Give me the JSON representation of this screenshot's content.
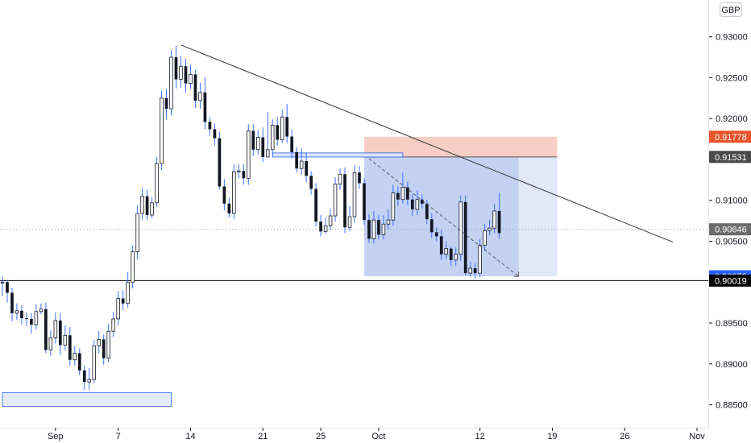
{
  "currency_label": "GBP",
  "chart_data": {
    "type": "candlestick",
    "instrument_currency": "GBP",
    "x_ticks": [
      {
        "label": "Sep",
        "bar": 11
      },
      {
        "label": "7",
        "bar": 24
      },
      {
        "label": "14",
        "bar": 39
      },
      {
        "label": "21",
        "bar": 54
      },
      {
        "label": "25",
        "bar": 66
      },
      {
        "label": "Oct",
        "bar": 78
      },
      {
        "label": "12",
        "bar": 99
      },
      {
        "label": "19",
        "bar": 114
      },
      {
        "label": "26",
        "bar": 129
      },
      {
        "label": "Nov",
        "bar": 144
      }
    ],
    "y_ticks": [
      "0.93000",
      "0.92500",
      "0.92000",
      "0.91500",
      "0.91000",
      "0.90500",
      "0.90000",
      "0.89500",
      "0.89000",
      "0.88500"
    ],
    "ylim": [
      0.8822,
      0.9345
    ],
    "xlim_bars": [
      -0.5,
      146.5
    ],
    "price_tags": [
      {
        "value": "0.91778",
        "color": "#e8542c"
      },
      {
        "value": "0.91531",
        "color": "#4a4a4a"
      },
      {
        "value": "0.90646",
        "color": "#6b6b6b"
      },
      {
        "value": "0.90072",
        "color": "#2962ff"
      },
      {
        "value": "0.90019",
        "color": "#000000"
      }
    ],
    "colors": {
      "up_wick": "#2962ff",
      "down_body": "#131722",
      "trendline": "#333333",
      "target_zone": "#f4c6b8",
      "position_zone": "#c8d6f5",
      "support_zone": "#e3ecfb"
    },
    "horizontal_line": 0.90019,
    "current_price_line": 0.90646,
    "trendline": {
      "from": {
        "bar": 37,
        "price": 0.929
      },
      "to": {
        "bar": 139,
        "price": 0.9049
      }
    },
    "support_zone": {
      "from_bar": 0,
      "to_bar": 35,
      "top": 0.8865,
      "bottom": 0.8848
    },
    "target_zone": {
      "from_bar": 75,
      "to_bar": 115,
      "top": 0.91778,
      "bottom": 0.91531
    },
    "position_zone": {
      "from_bar": 75,
      "to_bar": 115,
      "top": 0.91531,
      "bottom": 0.90072
    },
    "position_zone_dark_until_bar": 107,
    "projection_arrow": {
      "from": {
        "bar": 76,
        "price": 0.9151
      },
      "to": {
        "bar": 107,
        "price": 0.9007
      }
    },
    "small_box": {
      "from_bar": 56,
      "to_bar": 83,
      "top": 0.9158,
      "bottom": 0.9153
    },
    "ohlc": [
      [
        0.9,
        0.9,
        0.9007,
        0.8983
      ],
      [
        0.9,
        0.8987,
        0.9003,
        0.8975
      ],
      [
        0.8987,
        0.8962,
        0.8993,
        0.8952
      ],
      [
        0.8962,
        0.8965,
        0.8974,
        0.8954
      ],
      [
        0.8965,
        0.8956,
        0.8972,
        0.8948
      ],
      [
        0.8956,
        0.8955,
        0.8963,
        0.8946
      ],
      [
        0.8955,
        0.8948,
        0.8962,
        0.8937
      ],
      [
        0.8948,
        0.8964,
        0.8973,
        0.8942
      ],
      [
        0.8964,
        0.8967,
        0.8974,
        0.8961
      ],
      [
        0.8967,
        0.8917,
        0.8975,
        0.8913
      ],
      [
        0.8917,
        0.8932,
        0.8941,
        0.891
      ],
      [
        0.8932,
        0.8953,
        0.8963,
        0.8925
      ],
      [
        0.8953,
        0.8923,
        0.8962,
        0.8911
      ],
      [
        0.8923,
        0.8935,
        0.8947,
        0.8917
      ],
      [
        0.8935,
        0.8905,
        0.8945,
        0.8898
      ],
      [
        0.8905,
        0.8913,
        0.8922,
        0.8898
      ],
      [
        0.8913,
        0.8892,
        0.8919,
        0.8886
      ],
      [
        0.8892,
        0.8878,
        0.8898,
        0.8868
      ],
      [
        0.8878,
        0.8881,
        0.8895,
        0.8868
      ],
      [
        0.8881,
        0.8922,
        0.8929,
        0.8876
      ],
      [
        0.8922,
        0.893,
        0.894,
        0.8913
      ],
      [
        0.893,
        0.8907,
        0.8936,
        0.8899
      ],
      [
        0.8907,
        0.894,
        0.8949,
        0.8902
      ],
      [
        0.894,
        0.8955,
        0.8964,
        0.8933
      ],
      [
        0.8955,
        0.898,
        0.8989,
        0.8947
      ],
      [
        0.898,
        0.8974,
        0.899,
        0.8965
      ],
      [
        0.8974,
        0.9,
        0.9012,
        0.8969
      ],
      [
        0.9,
        0.9037,
        0.9045,
        0.8992
      ],
      [
        0.9037,
        0.9084,
        0.9094,
        0.9028
      ],
      [
        0.9084,
        0.9105,
        0.9116,
        0.9076
      ],
      [
        0.9105,
        0.9082,
        0.9113,
        0.9076
      ],
      [
        0.9082,
        0.9097,
        0.9104,
        0.9078
      ],
      [
        0.9097,
        0.9145,
        0.9153,
        0.9092
      ],
      [
        0.9145,
        0.9225,
        0.9234,
        0.9137
      ],
      [
        0.9225,
        0.9212,
        0.9236,
        0.9199
      ],
      [
        0.9212,
        0.9275,
        0.9284,
        0.9204
      ],
      [
        0.9275,
        0.9248,
        0.9289,
        0.9237
      ],
      [
        0.9248,
        0.9264,
        0.9277,
        0.9238
      ],
      [
        0.9264,
        0.9243,
        0.9273,
        0.9232
      ],
      [
        0.9243,
        0.9254,
        0.9266,
        0.9236
      ],
      [
        0.9254,
        0.9222,
        0.926,
        0.9213
      ],
      [
        0.9222,
        0.9232,
        0.9244,
        0.9212
      ],
      [
        0.9232,
        0.9196,
        0.9251,
        0.9187
      ],
      [
        0.9196,
        0.9187,
        0.9202,
        0.9179
      ],
      [
        0.9187,
        0.9176,
        0.9194,
        0.9167
      ],
      [
        0.9176,
        0.9117,
        0.9184,
        0.9113
      ],
      [
        0.9117,
        0.9096,
        0.9126,
        0.9088
      ],
      [
        0.9096,
        0.9084,
        0.9103,
        0.9079
      ],
      [
        0.9084,
        0.9135,
        0.9144,
        0.9077
      ],
      [
        0.9135,
        0.9136,
        0.9144,
        0.9127
      ],
      [
        0.9136,
        0.9127,
        0.9144,
        0.9119
      ],
      [
        0.9127,
        0.9185,
        0.9193,
        0.9119
      ],
      [
        0.9185,
        0.9162,
        0.9193,
        0.9154
      ],
      [
        0.9162,
        0.9177,
        0.9186,
        0.9156
      ],
      [
        0.9177,
        0.9153,
        0.9189,
        0.9147
      ],
      [
        0.9153,
        0.9162,
        0.9208,
        0.9155
      ],
      [
        0.9162,
        0.9192,
        0.9199,
        0.9154
      ],
      [
        0.9192,
        0.9174,
        0.9202,
        0.9167
      ],
      [
        0.9174,
        0.9202,
        0.9211,
        0.917
      ],
      [
        0.9202,
        0.9178,
        0.9218,
        0.917
      ],
      [
        0.9178,
        0.9159,
        0.9187,
        0.9151
      ],
      [
        0.9159,
        0.9139,
        0.9165,
        0.9134
      ],
      [
        0.9139,
        0.9148,
        0.9164,
        0.9131
      ],
      [
        0.9148,
        0.913,
        0.9158,
        0.9122
      ],
      [
        0.913,
        0.9114,
        0.9136,
        0.9107
      ],
      [
        0.9114,
        0.9074,
        0.9121,
        0.9068
      ],
      [
        0.9074,
        0.9062,
        0.9082,
        0.9056
      ],
      [
        0.9062,
        0.9069,
        0.9079,
        0.9059
      ],
      [
        0.9069,
        0.9081,
        0.909,
        0.9064
      ],
      [
        0.9081,
        0.912,
        0.9128,
        0.9074
      ],
      [
        0.912,
        0.9132,
        0.9139,
        0.9113
      ],
      [
        0.9132,
        0.9067,
        0.914,
        0.906
      ],
      [
        0.9067,
        0.908,
        0.9093,
        0.9062
      ],
      [
        0.908,
        0.9134,
        0.9143,
        0.9072
      ],
      [
        0.9134,
        0.9121,
        0.9142,
        0.9114
      ],
      [
        0.9121,
        0.9076,
        0.9127,
        0.907
      ],
      [
        0.9076,
        0.9053,
        0.9083,
        0.9048
      ],
      [
        0.9053,
        0.9076,
        0.9087,
        0.9047
      ],
      [
        0.9076,
        0.9058,
        0.9083,
        0.9052
      ],
      [
        0.9058,
        0.9071,
        0.9082,
        0.9052
      ],
      [
        0.9071,
        0.9076,
        0.9089,
        0.9065
      ],
      [
        0.9076,
        0.9109,
        0.9119,
        0.9069
      ],
      [
        0.9109,
        0.9101,
        0.9117,
        0.9093
      ],
      [
        0.9101,
        0.9116,
        0.9134,
        0.9096
      ],
      [
        0.9116,
        0.9101,
        0.9123,
        0.9094
      ],
      [
        0.9101,
        0.9089,
        0.9108,
        0.9081
      ],
      [
        0.9089,
        0.9101,
        0.9112,
        0.9082
      ],
      [
        0.9101,
        0.9096,
        0.9107,
        0.909
      ],
      [
        0.9096,
        0.9077,
        0.9101,
        0.9071
      ],
      [
        0.9077,
        0.9061,
        0.9084,
        0.9054
      ],
      [
        0.9061,
        0.9056,
        0.9067,
        0.905
      ],
      [
        0.9056,
        0.9034,
        0.9064,
        0.9027
      ],
      [
        0.9034,
        0.9041,
        0.905,
        0.9028
      ],
      [
        0.9041,
        0.9027,
        0.9044,
        0.902
      ],
      [
        0.9027,
        0.9034,
        0.9043,
        0.902
      ],
      [
        0.9034,
        0.9098,
        0.9106,
        0.9026
      ],
      [
        0.9098,
        0.9011,
        0.9106,
        0.9008
      ],
      [
        0.9011,
        0.9017,
        0.9025,
        0.9007
      ],
      [
        0.9017,
        0.9011,
        0.9023,
        0.9004
      ],
      [
        0.9011,
        0.9045,
        0.9053,
        0.9006
      ],
      [
        0.9045,
        0.9063,
        0.9071,
        0.9038
      ],
      [
        0.9063,
        0.9066,
        0.9076,
        0.9057
      ],
      [
        0.9066,
        0.9087,
        0.9096,
        0.906
      ],
      [
        0.9087,
        0.906,
        0.9109,
        0.9053
      ]
    ]
  }
}
